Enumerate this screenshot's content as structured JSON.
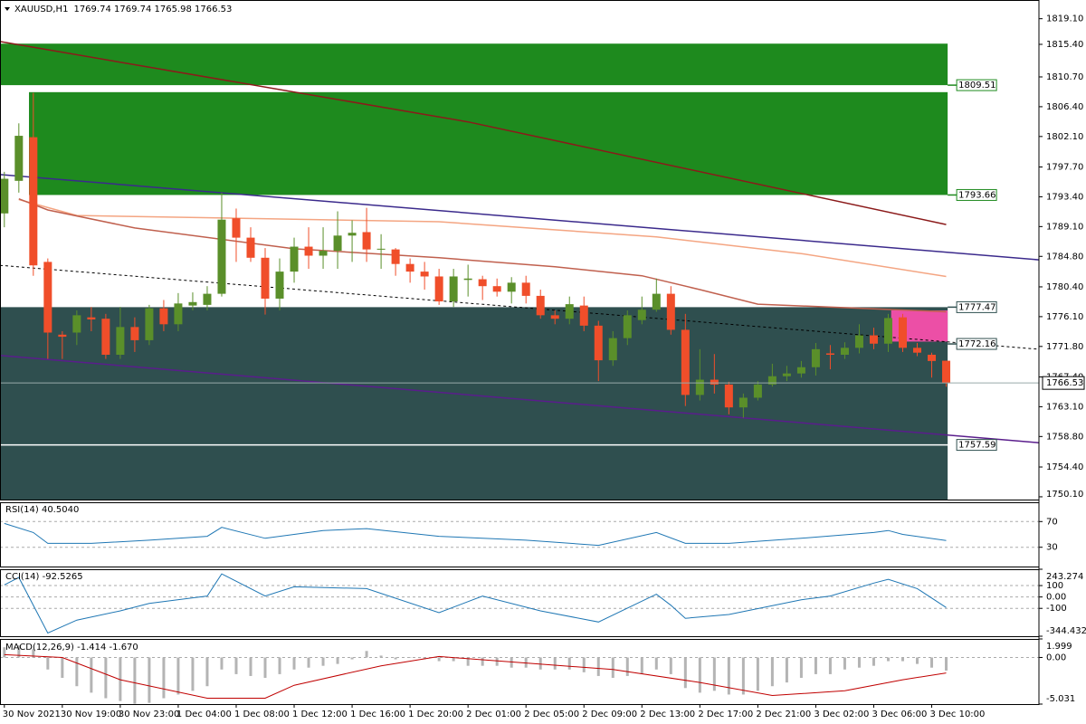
{
  "chart_data": [
    {
      "type": "candlestick",
      "title": "XAUUSD,H1",
      "subtitle": "1769.74 1769.74 1765.98 1766.53",
      "xlim": [
        -0.3,
        71.4
      ],
      "ylim": [
        1749.7,
        1821.8
      ],
      "xticks": [
        {
          "value": 0,
          "label": "30 Nov 2021"
        },
        {
          "value": 4,
          "label": "30 Nov 19:00"
        },
        {
          "value": 8,
          "label": "30 Nov 23:00"
        },
        {
          "value": 12,
          "label": "1 Dec 04:00"
        },
        {
          "value": 16,
          "label": "1 Dec 08:00"
        },
        {
          "value": 20,
          "label": "1 Dec 12:00"
        },
        {
          "value": 24,
          "label": "1 Dec 16:00"
        },
        {
          "value": 28,
          "label": "1 Dec 20:00"
        },
        {
          "value": 32,
          "label": "2 Dec 01:00"
        },
        {
          "value": 36,
          "label": "2 Dec 05:00"
        },
        {
          "value": 40,
          "label": "2 Dec 09:00"
        },
        {
          "value": 44,
          "label": "2 Dec 13:00"
        },
        {
          "value": 48,
          "label": "2 Dec 17:00"
        },
        {
          "value": 52,
          "label": "2 Dec 21:00"
        },
        {
          "value": 56,
          "label": "3 Dec 02:00"
        },
        {
          "value": 60,
          "label": "3 Dec 06:00"
        },
        {
          "value": 64,
          "label": "3 Dec 10:00"
        }
      ],
      "yticks": [
        {
          "value": 1819.1,
          "label": "1819.10"
        },
        {
          "value": 1815.4,
          "label": "1815.40"
        },
        {
          "value": 1810.7,
          "label": "1810.70"
        },
        {
          "value": 1806.4,
          "label": "1806.40"
        },
        {
          "value": 1802.1,
          "label": "1802.10"
        },
        {
          "value": 1797.7,
          "label": "1797.70"
        },
        {
          "value": 1793.4,
          "label": "1793.40"
        },
        {
          "value": 1789.1,
          "label": "1789.10"
        },
        {
          "value": 1784.8,
          "label": "1784.80"
        },
        {
          "value": 1780.4,
          "label": "1780.40"
        },
        {
          "value": 1776.1,
          "label": "1776.10"
        },
        {
          "value": 1771.8,
          "label": "1771.80"
        },
        {
          "value": 1767.4,
          "label": "1767.40"
        },
        {
          "value": 1763.1,
          "label": "1763.10"
        },
        {
          "value": 1758.8,
          "label": "1758.80"
        },
        {
          "value": 1754.4,
          "label": "1754.40"
        },
        {
          "value": 1750.1,
          "label": "1750.10"
        }
      ],
      "up_color": "#5a8f2a",
      "down_color": "#f04e2a",
      "open": [
        1791,
        1795.7,
        1802,
        1784,
        1773.5,
        1773.8,
        1776,
        1775.8,
        1770.6,
        1774.6,
        1772.7,
        1777.3,
        1775,
        1777.7,
        1777.8,
        1779.4,
        1790.3,
        1787.5,
        1784.6,
        1778.7,
        1782.6,
        1786.2,
        1784.9,
        1785.6,
        1787.8,
        1788.3,
        1785.8,
        1785.8,
        1783.7,
        1782.6,
        1781.9,
        1778.3,
        1781.4,
        1781.5,
        1780.5,
        1779.7,
        1781,
        1779.1,
        1776.3,
        1775.8,
        1777.7,
        1774.8,
        1769.8,
        1773,
        1775.6,
        1777.1,
        1779.4,
        1774.2,
        1764.8,
        1767,
        1766.3,
        1763,
        1764.4,
        1766.3,
        1767.5,
        1767.9,
        1768.8,
        1770.8,
        1770.6,
        1771.6,
        1773.4,
        1772.2,
        1776,
        1771.6,
        1770.6,
        1769.74
      ],
      "high": [
        1797,
        1804,
        1808.4,
        1784.5,
        1774,
        1777,
        1777.5,
        1776.5,
        1777.5,
        1776,
        1777.8,
        1778.5,
        1779.5,
        1779.6,
        1780.5,
        1794,
        1791.7,
        1789,
        1786,
        1784.5,
        1787.5,
        1789,
        1789,
        1791.3,
        1790,
        1791.8,
        1788,
        1786,
        1784.5,
        1784,
        1783,
        1783,
        1783.6,
        1782,
        1781.6,
        1781.8,
        1782,
        1780,
        1777,
        1779,
        1779,
        1775.5,
        1774,
        1777,
        1779,
        1781.6,
        1780.5,
        1776.5,
        1771.4,
        1770.7,
        1766.7,
        1765,
        1766.8,
        1769.3,
        1769,
        1769.7,
        1772.3,
        1772,
        1772.4,
        1775,
        1774.5,
        1776.5,
        1776.5,
        1772.3,
        1770.9,
        1769.74
      ],
      "low": [
        1789,
        1794,
        1782,
        1770,
        1770,
        1772,
        1774,
        1770,
        1770,
        1771,
        1772,
        1774,
        1774,
        1777,
        1777,
        1779,
        1784,
        1784,
        1776.4,
        1777,
        1781,
        1783,
        1783,
        1783,
        1784,
        1784,
        1783,
        1782,
        1781,
        1780,
        1777.8,
        1777.5,
        1779,
        1778.5,
        1779,
        1778,
        1778,
        1775.8,
        1775,
        1775,
        1774,
        1766.8,
        1769,
        1772,
        1775,
        1776.8,
        1773.5,
        1763.2,
        1764,
        1765,
        1762,
        1761.5,
        1764,
        1766,
        1766.8,
        1767.3,
        1767.6,
        1768.5,
        1770,
        1770.8,
        1771.4,
        1771,
        1771,
        1770.4,
        1767.3,
        1765.98
      ],
      "close": [
        1796,
        1802.2,
        1783.5,
        1773.8,
        1773.2,
        1776.3,
        1775.7,
        1770.6,
        1774.6,
        1772.7,
        1777.3,
        1775,
        1778,
        1778.2,
        1779.4,
        1790.1,
        1787.5,
        1784.6,
        1778.7,
        1782.6,
        1786.2,
        1784.9,
        1785.6,
        1787.8,
        1788.2,
        1785.8,
        1785.9,
        1783.7,
        1782.6,
        1781.9,
        1778.3,
        1781.9,
        1781.6,
        1780.5,
        1779.7,
        1781,
        1779.1,
        1776.3,
        1775.8,
        1777.9,
        1774.8,
        1769.8,
        1773,
        1776.3,
        1777.1,
        1779.4,
        1774.2,
        1764.8,
        1767,
        1766.3,
        1763,
        1764.4,
        1766.3,
        1767.5,
        1767.9,
        1768.8,
        1771.4,
        1770.6,
        1771.6,
        1773.4,
        1772.2,
        1775.9,
        1771.6,
        1770.9,
        1769.7,
        1766.53
      ],
      "zones": [
        {
          "x": [
            -0.3,
            65.1
          ],
          "range": [
            1809.51,
            1815.5
          ],
          "color": "#1e8a1e"
        },
        {
          "x": [
            1.7,
            65.1
          ],
          "range": [
            1793.66,
            1808.5
          ],
          "color": "#1e8a1e"
        },
        {
          "x": [
            -0.3,
            65.1
          ],
          "range": [
            1749.7,
            1777.47
          ],
          "color": "#2f4f4f"
        },
        {
          "x": [
            61.2,
            65.1
          ],
          "range": [
            1772.5,
            1777
          ],
          "color": "#ec4fa6"
        }
      ],
      "lines": [
        {
          "color": "#8b1a1a",
          "dash": false,
          "x": [
            -0.3,
            32,
            65
          ],
          "values": [
            1815.8,
            1804.2,
            1789.4
          ]
        },
        {
          "color": "#f4a582",
          "dash": false,
          "x": [
            1,
            5,
            30,
            45,
            55,
            65
          ],
          "values": [
            1793,
            1790.7,
            1789.8,
            1787.6,
            1785.2,
            1781.9
          ]
        },
        {
          "color": "#c0604e",
          "dash": false,
          "x": [
            1,
            3,
            9,
            20,
            30,
            38,
            44,
            48,
            52,
            65
          ],
          "values": [
            1793.1,
            1791.5,
            1788.9,
            1785.9,
            1784.6,
            1783.3,
            1782,
            1780,
            1777.9,
            1776.8
          ]
        },
        {
          "color": "#3b2a8c",
          "dash": false,
          "x": [
            -0.3,
            71.4
          ],
          "values": [
            1796.6,
            1784.3
          ]
        },
        {
          "color": "#5a1d8c",
          "dash": false,
          "x": [
            -0.3,
            71.4
          ],
          "values": [
            1770.5,
            1757.9
          ]
        },
        {
          "color": "#000000",
          "dash": true,
          "x": [
            -0.3,
            71.4
          ],
          "values": [
            1783.5,
            1771.4
          ]
        }
      ],
      "levels": [
        1809.51,
        1793.66,
        1777.47,
        1772.16,
        1757.59
      ],
      "level_colors": [
        "#1e8a1e",
        "#1e8a1e",
        "#2f4f4f",
        "#2f4f4f",
        "#2f4f4f"
      ],
      "last": 1766.53
    },
    {
      "type": "line",
      "title": "RSI(14) 40.5040",
      "ylim": [
        0,
        100
      ],
      "yticks": [
        70,
        30
      ],
      "series": [
        {
          "color": "#1f77b4",
          "x": [
            0,
            2,
            3,
            6,
            10,
            14,
            15,
            18,
            22,
            25,
            30,
            36,
            41,
            45,
            47,
            50,
            55,
            60,
            61,
            62,
            65
          ],
          "values": [
            67,
            53,
            36,
            36,
            41,
            47,
            61,
            44,
            56,
            59,
            47,
            41,
            33,
            53,
            36,
            36,
            44,
            53,
            56,
            50,
            40.504
          ]
        }
      ]
    },
    {
      "type": "line",
      "title": "CCI(14) -92.5265",
      "ylim": [
        -344.4323,
        243.274
      ],
      "yticks": [
        243.274,
        100,
        {
          "value": 0,
          "label": "0.00"
        },
        -100,
        -344.4323
      ],
      "series": [
        {
          "color": "#1f77b4",
          "x": [
            0,
            1,
            3,
            5,
            8,
            10,
            13,
            14,
            15,
            18,
            20,
            25,
            30,
            33,
            37,
            41,
            45,
            46,
            47,
            50,
            55,
            57,
            60,
            61,
            63,
            65
          ],
          "values": [
            106,
            171,
            -317,
            -203,
            -122,
            -57,
            -8,
            8,
            203,
            8,
            89,
            73,
            -138,
            8,
            -122,
            -220,
            24,
            -73,
            -187,
            -154,
            -24,
            8,
            122,
            154,
            73,
            -92.5265
          ]
        }
      ]
    },
    {
      "type": "macd",
      "title": "MACD(12,26,9) -1.414 -1.670",
      "ylim": [
        -5.031,
        1.999
      ],
      "yticks": [
        1.999,
        {
          "value": 0,
          "label": "0.00"
        },
        -5.031
      ],
      "histogram": {
        "color": "#b4b4b4",
        "values": [
          1.1,
          1.3,
          0.9,
          -1.3,
          -2.2,
          -3.1,
          -3.8,
          -4.4,
          -4.7,
          -5.0,
          -4.9,
          -4.4,
          -4.0,
          -3.6,
          -3.1,
          -1.3,
          -1.8,
          -2.0,
          -2.2,
          -1.8,
          -1.3,
          -1.1,
          -0.9,
          -0.7,
          -0.2,
          0.7,
          0.2,
          -0.2,
          0,
          -0.2,
          -0.4,
          -0.4,
          -0.9,
          -0.9,
          -0.9,
          -1.1,
          -1.1,
          -1.3,
          -1.3,
          -1.3,
          -1.6,
          -2.0,
          -2.2,
          -2.0,
          -1.8,
          -1.3,
          -1.8,
          -3.3,
          -3.8,
          -3.6,
          -4.0,
          -4.0,
          -3.6,
          -3.1,
          -2.7,
          -2.2,
          -1.8,
          -1.8,
          -1.3,
          -1.1,
          -0.9,
          -0.4,
          -0.4,
          -0.7,
          -1.1,
          -1.414
        ]
      },
      "signal": {
        "color": "#c00000",
        "x": [
          0,
          4,
          8,
          14,
          18,
          20,
          26,
          30,
          36,
          42,
          48,
          53,
          58,
          62,
          65
        ],
        "values": [
          0.3,
          0,
          -2.4,
          -4.4,
          -4.4,
          -3,
          -0.9,
          0.1,
          -0.6,
          -1.3,
          -2.7,
          -4.1,
          -3.6,
          -2.4,
          -1.67
        ]
      }
    }
  ]
}
